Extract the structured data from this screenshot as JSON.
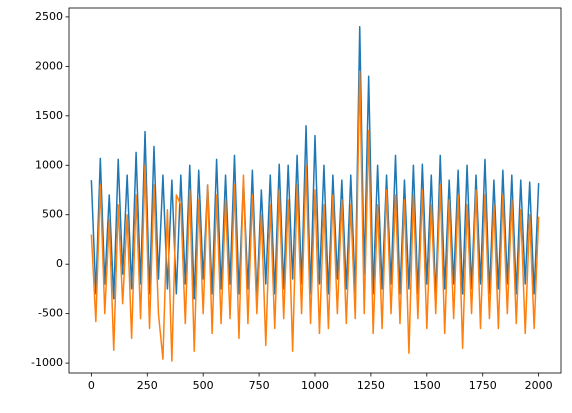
{
  "chart_data": {
    "type": "line",
    "x": [
      0,
      20,
      40,
      60,
      80,
      100,
      120,
      140,
      160,
      180,
      200,
      220,
      240,
      260,
      280,
      300,
      320,
      340,
      360,
      380,
      400,
      420,
      440,
      460,
      480,
      500,
      520,
      540,
      560,
      580,
      600,
      620,
      640,
      660,
      680,
      700,
      720,
      740,
      760,
      780,
      800,
      820,
      840,
      860,
      880,
      900,
      920,
      940,
      960,
      980,
      1000,
      1020,
      1040,
      1060,
      1080,
      1100,
      1120,
      1140,
      1160,
      1180,
      1200,
      1220,
      1240,
      1260,
      1280,
      1300,
      1320,
      1340,
      1360,
      1380,
      1400,
      1420,
      1440,
      1460,
      1480,
      1500,
      1520,
      1540,
      1560,
      1580,
      1600,
      1620,
      1640,
      1660,
      1680,
      1700,
      1720,
      1740,
      1760,
      1780,
      1800,
      1820,
      1840,
      1860,
      1880,
      1900,
      1920,
      1940,
      1960,
      1980,
      2000
    ],
    "series": [
      {
        "color": "#1f77b4",
        "values": [
          850,
          -300,
          1070,
          -200,
          700,
          -350,
          1060,
          -100,
          900,
          -250,
          1130,
          -200,
          1340,
          -300,
          1190,
          -150,
          900,
          -250,
          850,
          -300,
          900,
          -200,
          1000,
          -350,
          950,
          -150,
          800,
          -300,
          1060,
          -250,
          900,
          -200,
          1100,
          -300,
          850,
          -250,
          950,
          -350,
          750,
          -200,
          900,
          -300,
          1010,
          -250,
          1000,
          -150,
          1100,
          -200,
          1400,
          -300,
          1300,
          -200,
          1000,
          -300,
          900,
          -150,
          850,
          -250,
          900,
          -300,
          2400,
          -100,
          1900,
          -300,
          1000,
          -250,
          900,
          -200,
          1100,
          -300,
          850,
          -250,
          1000,
          -300,
          1010,
          -200,
          900,
          -350,
          1100,
          -250,
          850,
          -200,
          950,
          -300,
          1000,
          -250,
          900,
          -200,
          1060,
          -300,
          850,
          -250,
          950,
          -200,
          900,
          -300,
          850,
          -200,
          830,
          -300,
          820
        ]
      },
      {
        "color": "#ff7f0e",
        "values": [
          300,
          -580,
          800,
          -500,
          450,
          -870,
          600,
          -400,
          500,
          -750,
          700,
          -550,
          1000,
          -650,
          800,
          -500,
          -960,
          550,
          -980,
          700,
          600,
          -600,
          750,
          -880,
          650,
          -500,
          800,
          -700,
          700,
          -600,
          650,
          -550,
          800,
          -750,
          900,
          -600,
          700,
          -500,
          500,
          -820,
          600,
          -650,
          750,
          -550,
          650,
          -880,
          800,
          -500,
          1000,
          -600,
          750,
          -700,
          600,
          -650,
          700,
          -500,
          650,
          -600,
          600,
          -550,
          1950,
          -500,
          1350,
          -700,
          600,
          -650,
          750,
          -500,
          700,
          -600,
          650,
          -900,
          700,
          -550,
          750,
          -650,
          600,
          -500,
          800,
          -700,
          650,
          -550,
          700,
          -850,
          600,
          -500,
          750,
          -650,
          700,
          -550,
          600,
          -650,
          700,
          -500,
          650,
          -600,
          550,
          -700,
          500,
          -650,
          480
        ]
      }
    ],
    "xlim": [
      -100,
      2100
    ],
    "xticks": [
      0,
      250,
      500,
      750,
      1000,
      1250,
      1500,
      1750,
      2000
    ],
    "ylim": [
      -1100,
      2590
    ],
    "yticks": [
      -1000,
      -500,
      0,
      500,
      1000,
      1500,
      2000,
      2500
    ]
  }
}
